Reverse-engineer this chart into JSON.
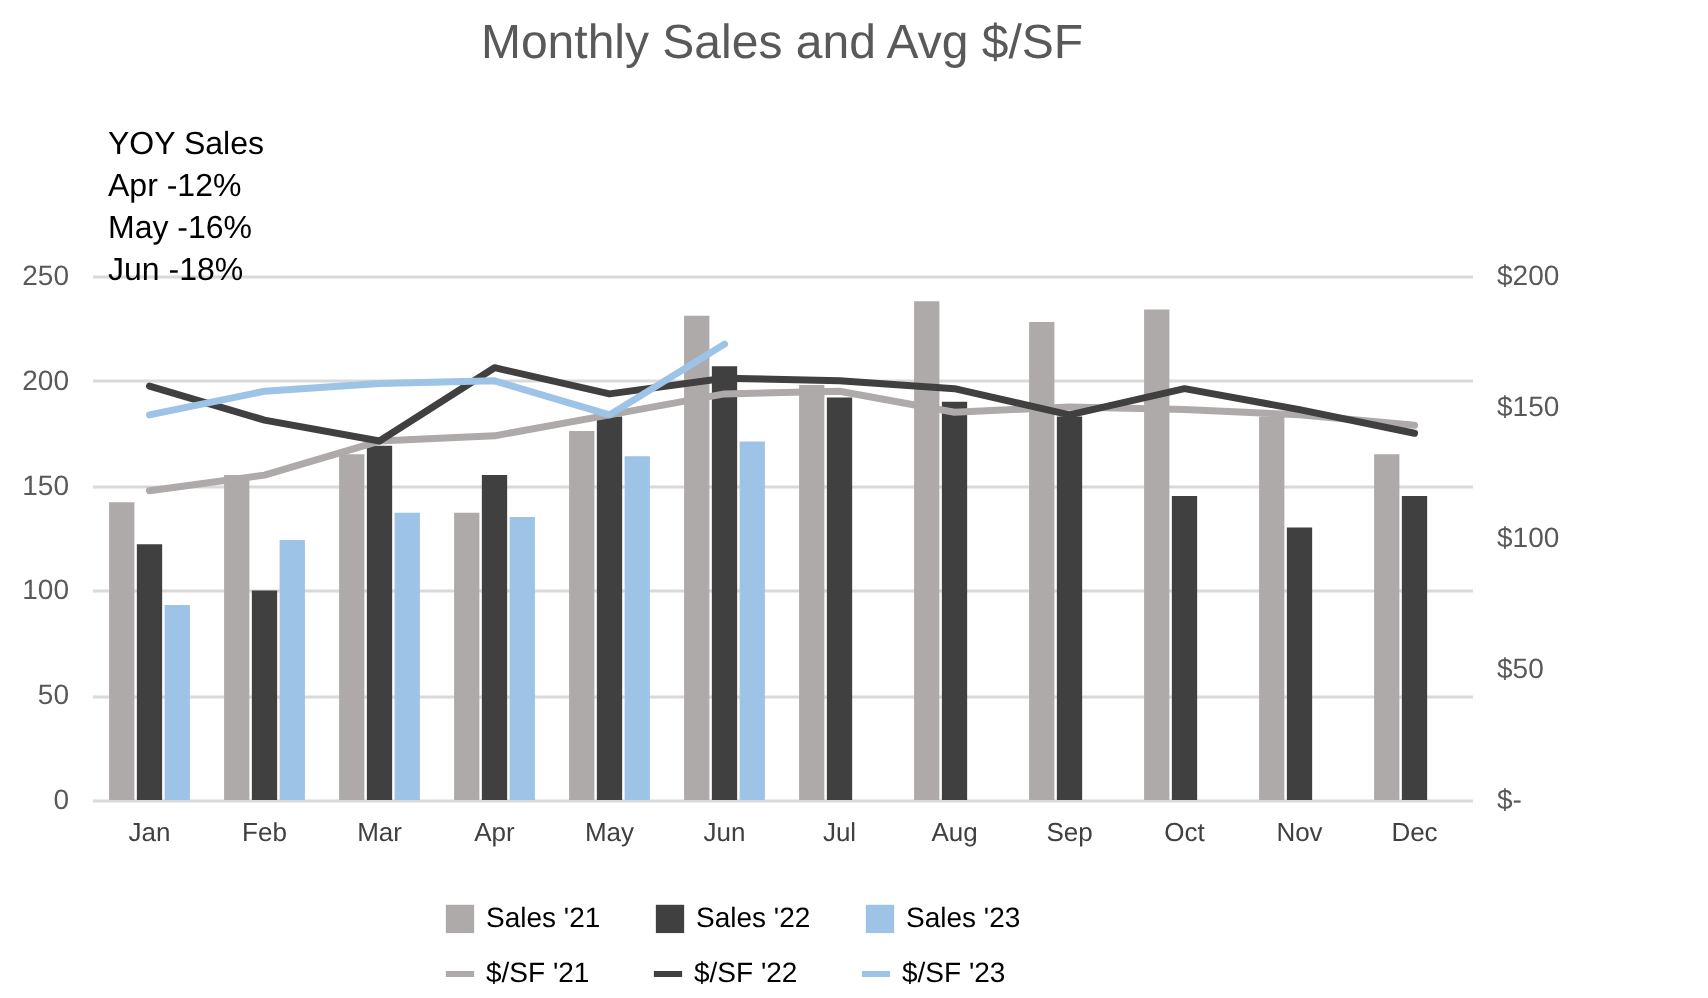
{
  "chart_data": {
    "type": "bar",
    "title": "Monthly Sales and Avg $/SF",
    "categories": [
      "Jan",
      "Feb",
      "Mar",
      "Apr",
      "May",
      "Jun",
      "Jul",
      "Aug",
      "Sep",
      "Oct",
      "Nov",
      "Dec"
    ],
    "series": [
      {
        "name": "Sales '21",
        "color": "#aeaaaa",
        "values": [
          142,
          155,
          165,
          137,
          176,
          231,
          198,
          238,
          228,
          234,
          183,
          165
        ]
      },
      {
        "name": "Sales '22",
        "color": "#404040",
        "values": [
          122,
          100,
          169,
          155,
          183,
          207,
          192,
          190,
          183,
          145,
          130,
          145
        ]
      },
      {
        "name": "Sales '23",
        "color": "#9dc3e6",
        "values": [
          93,
          124,
          137,
          135,
          164,
          171,
          null,
          null,
          null,
          null,
          null,
          null
        ]
      },
      {
        "name": "$/SF '21",
        "type": "line",
        "axis": "y2",
        "color": "#aeaaaa",
        "values": [
          118,
          124,
          137,
          139,
          147,
          155,
          156,
          148,
          150,
          149,
          147,
          143
        ]
      },
      {
        "name": "$/SF '22",
        "type": "line",
        "axis": "y2",
        "color": "#404040",
        "values": [
          158,
          145,
          137,
          165,
          155,
          161,
          160,
          157,
          147,
          157,
          149,
          140
        ]
      },
      {
        "name": "$/SF '23",
        "type": "line",
        "axis": "y2",
        "color": "#9dc3e6",
        "values": [
          147,
          156,
          159,
          160,
          147,
          174,
          null,
          null,
          null,
          null,
          null,
          null
        ]
      }
    ],
    "ylim": [
      0,
      250
    ],
    "yticks": [
      0,
      50,
      100,
      150,
      200,
      250
    ],
    "y2lim": [
      0,
      200
    ],
    "y2ticks": [
      {
        "value": 0,
        "label": "$-"
      },
      {
        "value": 50,
        "label": "$50"
      },
      {
        "value": 100,
        "label": "$100"
      },
      {
        "value": 150,
        "label": "$150"
      },
      {
        "value": 200,
        "label": "$200"
      }
    ],
    "annotations": [
      "YOY Sales",
      "Apr -12%",
      "May -16%",
      "Jun -18%"
    ],
    "grid": "y",
    "legend": "bottom",
    "marker": "none",
    "line_style": "solid"
  }
}
